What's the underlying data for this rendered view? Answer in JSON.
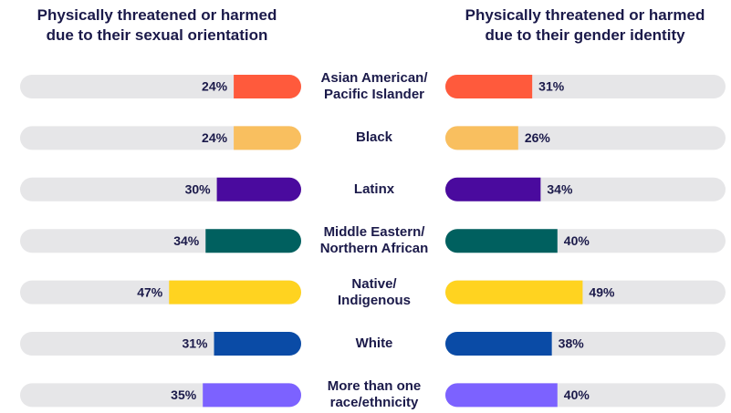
{
  "chart_data": {
    "type": "bar",
    "orientation": "horizontal",
    "categories": [
      "Asian American/\nPacific Islander",
      "Black",
      "Latinx",
      "Middle Eastern/\nNorthern African",
      "Native/\nIndigenous",
      "White",
      "More than one\nrace/ethnicity"
    ],
    "colors": [
      "#ff5a3c",
      "#f9bf5f",
      "#4a0a9e",
      "#00605f",
      "#ffd320",
      "#0a4ba6",
      "#7c62ff"
    ],
    "xlim": [
      0,
      100
    ],
    "series": [
      {
        "name": "Physically threatened or harmed\ndue to their sexual orientation",
        "values": [
          24,
          24,
          30,
          34,
          47,
          31,
          35
        ],
        "value_labels": [
          "24%",
          "24%",
          "30%",
          "34%",
          "47%",
          "31%",
          "35%"
        ]
      },
      {
        "name": "Physically threatened or harmed\ndue to their gender identity",
        "values": [
          31,
          26,
          34,
          40,
          49,
          38,
          40
        ],
        "value_labels": [
          "31%",
          "26%",
          "34%",
          "40%",
          "49%",
          "38%",
          "40%"
        ]
      }
    ]
  }
}
